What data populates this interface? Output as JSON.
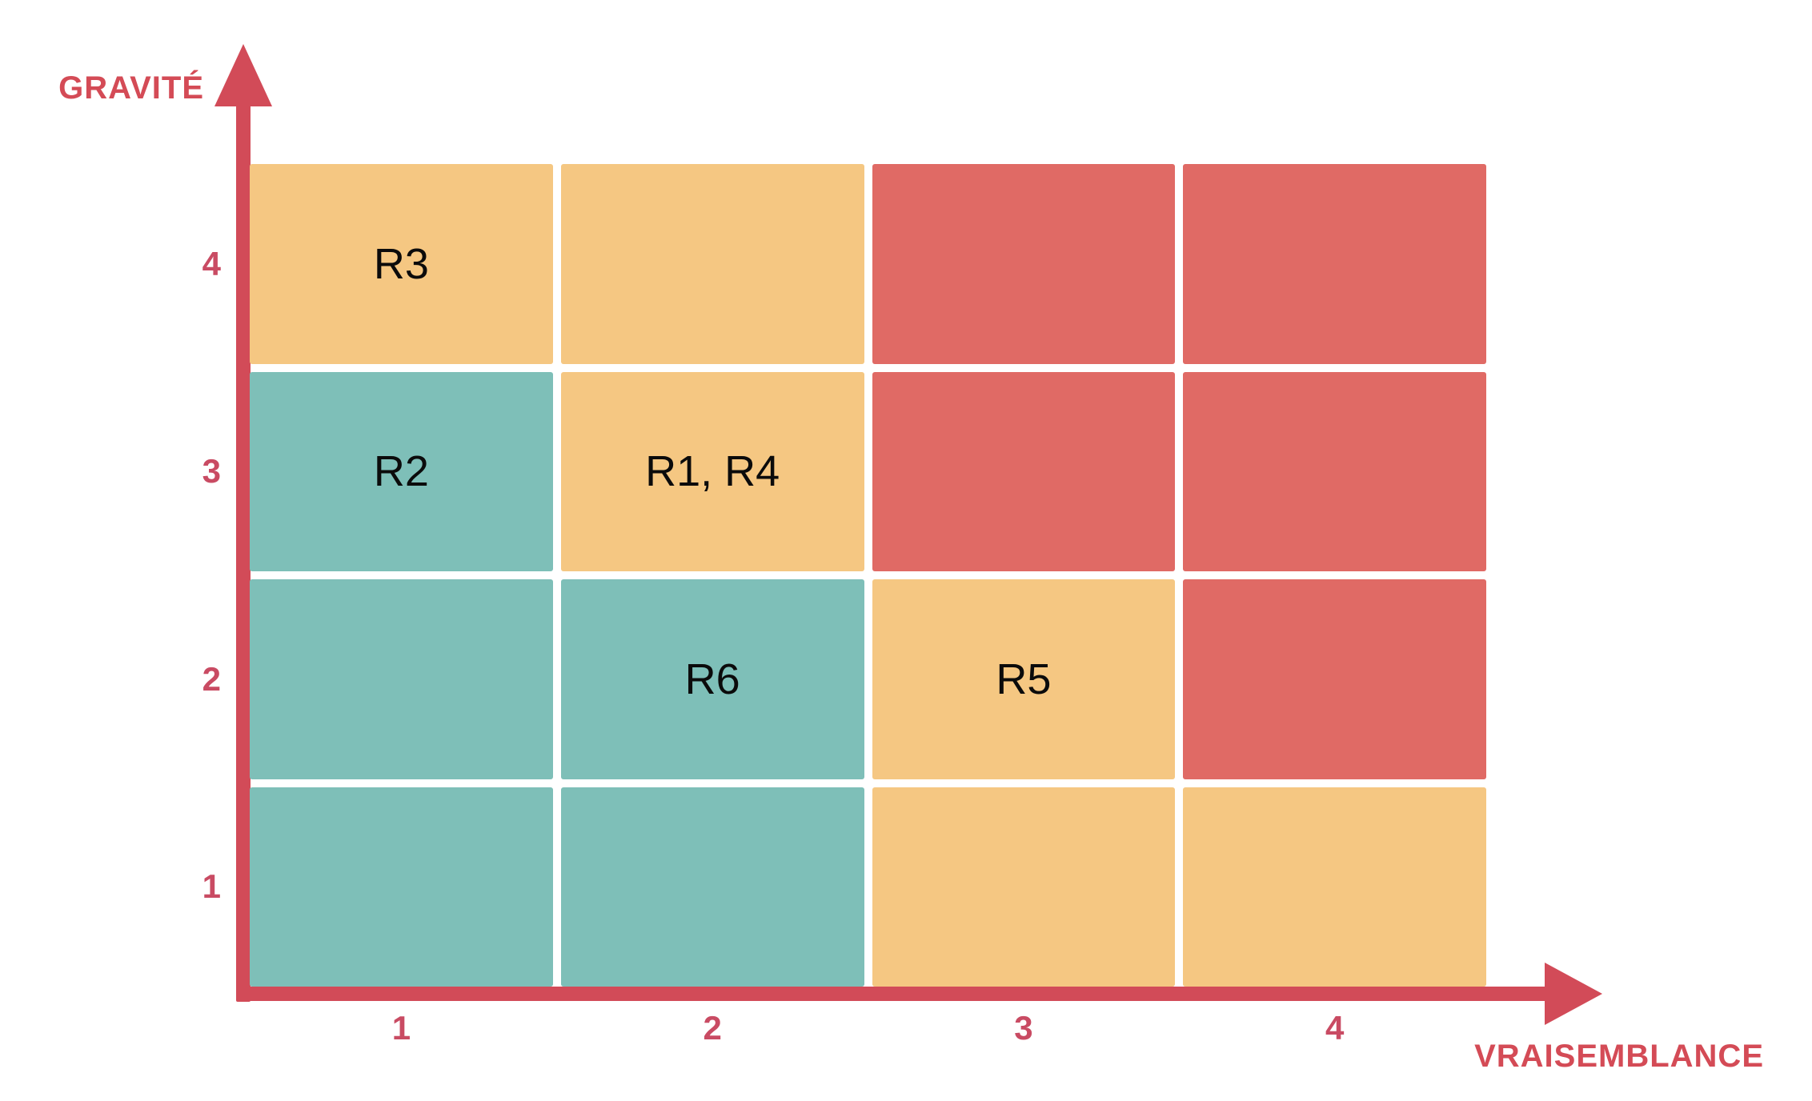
{
  "chart_data": {
    "type": "heatmap",
    "variant": "risk-matrix-4x4",
    "title": "",
    "x_axis": {
      "label": "VRAISEMBLANCE",
      "ticks": [
        "1",
        "2",
        "3",
        "4"
      ],
      "range": [
        1,
        4
      ]
    },
    "y_axis": {
      "label": "GRAVITÉ",
      "ticks_top_to_bottom": [
        "4",
        "3",
        "2",
        "1"
      ],
      "range": [
        1,
        4
      ]
    },
    "legend_position": "none",
    "grid": "white-gaps-between-cells",
    "colors": {
      "background": "#ffffff",
      "low": "#7EBFB8",
      "medium": "#F5C782",
      "high": "#E06A65",
      "axis": "#D24B58",
      "axis_label": "#D44B56",
      "tick": "#C94B63",
      "cell_label": "#0B0B0B"
    },
    "risks": [
      {
        "id": "R1",
        "vraisemblance": 2,
        "gravite": 3
      },
      {
        "id": "R2",
        "vraisemblance": 1,
        "gravite": 3
      },
      {
        "id": "R3",
        "vraisemblance": 1,
        "gravite": 4
      },
      {
        "id": "R4",
        "vraisemblance": 2,
        "gravite": 3
      },
      {
        "id": "R5",
        "vraisemblance": 3,
        "gravite": 2
      },
      {
        "id": "R6",
        "vraisemblance": 2,
        "gravite": 2
      }
    ],
    "cells": [
      {
        "gravite": 4,
        "vraisemblance": 1,
        "level": "medium",
        "label": "R3",
        "color": "#F5C782"
      },
      {
        "gravite": 4,
        "vraisemblance": 2,
        "level": "medium",
        "label": "",
        "color": "#F5C782"
      },
      {
        "gravite": 4,
        "vraisemblance": 3,
        "level": "high",
        "label": "",
        "color": "#E06A65"
      },
      {
        "gravite": 4,
        "vraisemblance": 4,
        "level": "high",
        "label": "",
        "color": "#E06A65"
      },
      {
        "gravite": 3,
        "vraisemblance": 1,
        "level": "low",
        "label": "R2",
        "color": "#7EBFB8"
      },
      {
        "gravite": 3,
        "vraisemblance": 2,
        "level": "medium",
        "label": "R1, R4",
        "color": "#F5C782"
      },
      {
        "gravite": 3,
        "vraisemblance": 3,
        "level": "high",
        "label": "",
        "color": "#E06A65"
      },
      {
        "gravite": 3,
        "vraisemblance": 4,
        "level": "high",
        "label": "",
        "color": "#E06A65"
      },
      {
        "gravite": 2,
        "vraisemblance": 1,
        "level": "low",
        "label": "",
        "color": "#7EBFB8"
      },
      {
        "gravite": 2,
        "vraisemblance": 2,
        "level": "low",
        "label": "R6",
        "color": "#7EBFB8"
      },
      {
        "gravite": 2,
        "vraisemblance": 3,
        "level": "medium",
        "label": "R5",
        "color": "#F5C782"
      },
      {
        "gravite": 2,
        "vraisemblance": 4,
        "level": "high",
        "label": "",
        "color": "#E06A65"
      },
      {
        "gravite": 1,
        "vraisemblance": 1,
        "level": "low",
        "label": "",
        "color": "#7EBFB8"
      },
      {
        "gravite": 1,
        "vraisemblance": 2,
        "level": "low",
        "label": "",
        "color": "#7EBFB8"
      },
      {
        "gravite": 1,
        "vraisemblance": 3,
        "level": "medium",
        "label": "",
        "color": "#F5C782"
      },
      {
        "gravite": 1,
        "vraisemblance": 4,
        "level": "medium",
        "label": "",
        "color": "#F5C782"
      }
    ]
  }
}
